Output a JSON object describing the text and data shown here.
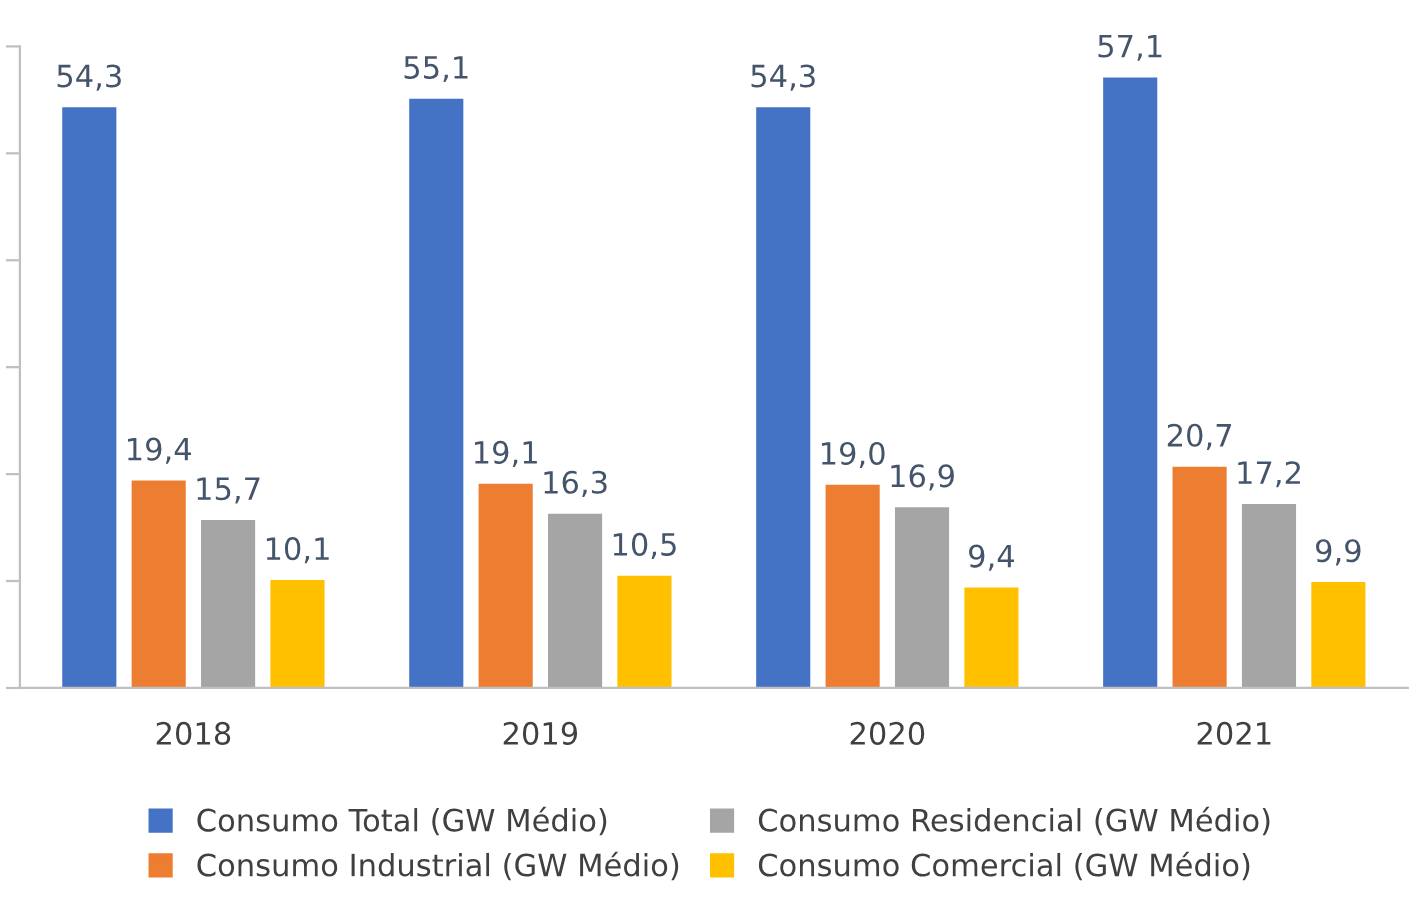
{
  "chart_data": {
    "type": "bar",
    "categories": [
      "2018",
      "2019",
      "2020",
      "2021"
    ],
    "series": [
      {
        "name": "Consumo Total (GW Médio)",
        "color": "#4472c4",
        "values": [
          54.3,
          55.1,
          54.3,
          57.1
        ],
        "value_labels": [
          "54,3",
          "55,1",
          "54,3",
          "57,1"
        ]
      },
      {
        "name": "Consumo Industrial (GW Médio)",
        "color": "#ed7d31",
        "values": [
          19.4,
          19.1,
          19.0,
          20.7
        ],
        "value_labels": [
          "19,4",
          "19,1",
          "19,0",
          "20,7"
        ]
      },
      {
        "name": "Consumo Residencial (GW Médio)",
        "color": "#a5a5a5",
        "values": [
          15.7,
          16.3,
          16.9,
          17.2
        ],
        "value_labels": [
          "15,7",
          "16,3",
          "16,9",
          "17,2"
        ]
      },
      {
        "name": "Consumo Comercial (GW Médio)",
        "color": "#ffc000",
        "values": [
          10.1,
          10.5,
          9.4,
          9.9
        ],
        "value_labels": [
          "10,1",
          "10,5",
          "9,4",
          "9,9"
        ]
      }
    ],
    "ylim": [
      0,
      60
    ],
    "yticks": [
      {
        "value": 0,
        "label": null
      },
      {
        "value": 10,
        "label": null
      },
      {
        "value": 20,
        "label": null
      },
      {
        "value": 30,
        "label": null
      },
      {
        "value": 40,
        "label": null
      },
      {
        "value": 50,
        "label": null
      },
      {
        "value": 60,
        "label": null
      }
    ],
    "grid": false,
    "legend": "bottom"
  }
}
